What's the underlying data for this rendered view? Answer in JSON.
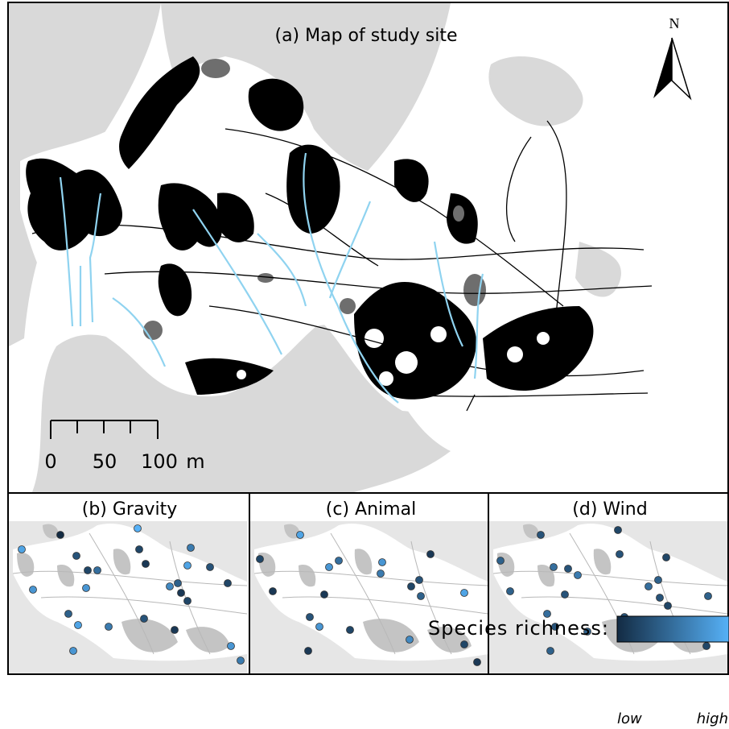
{
  "main_map": {
    "title": "(a) Map of study site",
    "north": "N",
    "scale_bar": {
      "ticks": [
        "0",
        "50",
        "100"
      ],
      "unit": "m"
    }
  },
  "panels": [
    {
      "title": "(b) Gravity"
    },
    {
      "title": "(c) Animal"
    },
    {
      "title": "(d) Wind"
    }
  ],
  "legend": {
    "title": "Species richness:",
    "low": "low",
    "high": "high"
  }
}
